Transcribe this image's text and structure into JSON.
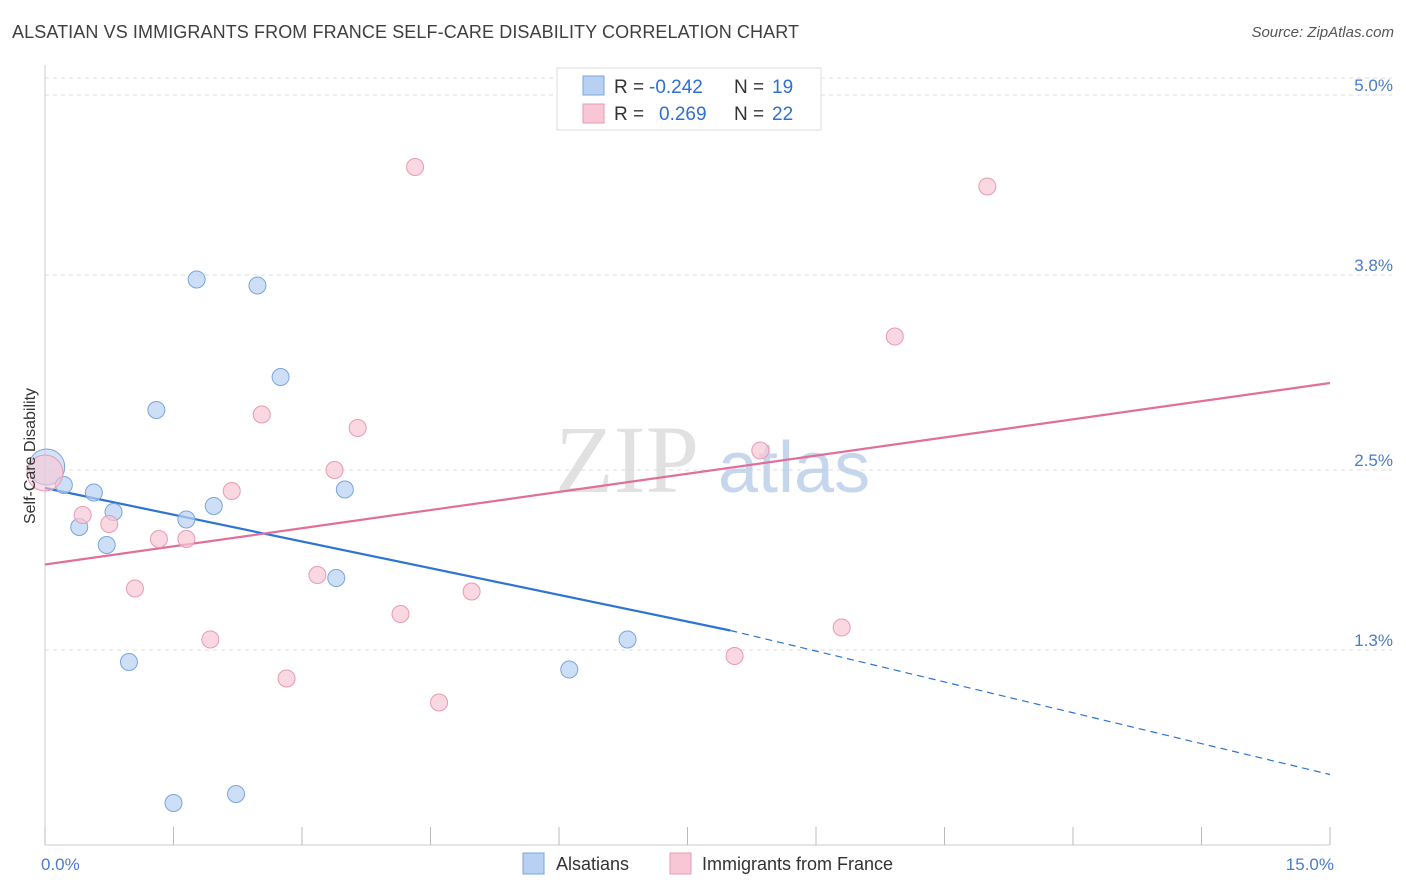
{
  "header": {
    "title": "ALSATIAN VS IMMIGRANTS FROM FRANCE SELF-CARE DISABILITY CORRELATION CHART",
    "source": "Source: ZipAtlas.com"
  },
  "colors": {
    "blue_fill": "#b8d1f2",
    "blue_stroke": "#7aa5dc",
    "blue_line": "#2e74d1",
    "pink_fill": "#f8c7d5",
    "pink_stroke": "#e99ab3",
    "pink_line": "#e0709a",
    "tick_text": "#4a7cc9",
    "grid": "#dddddd"
  },
  "watermark": {
    "zip": "ZIP",
    "atlas": "atlas"
  },
  "chart_data": {
    "type": "scatter",
    "title": "ALSATIAN VS IMMIGRANTS FROM FRANCE SELF-CARE DISABILITY CORRELATION CHART",
    "xlabel": "",
    "ylabel": "Self-Care Disability",
    "xlim": [
      0.0,
      15.0
    ],
    "ylim": [
      0.0,
      5.2
    ],
    "x_tick_labels": [
      {
        "value": 0.0,
        "label": "0.0%"
      },
      {
        "value": 15.0,
        "label": "15.0%"
      }
    ],
    "y_tick_labels": [
      {
        "value": 1.3,
        "label": "1.3%"
      },
      {
        "value": 2.5,
        "label": "2.5%"
      },
      {
        "value": 3.8,
        "label": "3.8%"
      },
      {
        "value": 5.0,
        "label": "5.0%"
      }
    ],
    "grid": true,
    "legend": {
      "placement": "top-center",
      "rows": [
        {
          "r_label": "R =",
          "r_value": "-0.242",
          "n_label": "N =",
          "n_value": "19",
          "series": "Alsatians"
        },
        {
          "r_label": "R =",
          "r_value": "0.269",
          "n_label": "N =",
          "n_value": "22",
          "series": "Immigrants from France"
        }
      ]
    },
    "series": [
      {
        "name": "Alsatians",
        "color": "blue",
        "points": [
          {
            "x": 0.02,
            "y": 2.52,
            "large": true
          },
          {
            "x": 0.22,
            "y": 2.4
          },
          {
            "x": 0.4,
            "y": 2.12
          },
          {
            "x": 0.57,
            "y": 2.35
          },
          {
            "x": 0.72,
            "y": 2.0
          },
          {
            "x": 0.8,
            "y": 2.22
          },
          {
            "x": 0.98,
            "y": 1.22
          },
          {
            "x": 1.3,
            "y": 2.9
          },
          {
            "x": 1.5,
            "y": 0.28
          },
          {
            "x": 1.65,
            "y": 2.17
          },
          {
            "x": 1.77,
            "y": 3.77
          },
          {
            "x": 1.97,
            "y": 2.26
          },
          {
            "x": 2.23,
            "y": 0.34
          },
          {
            "x": 2.48,
            "y": 3.73
          },
          {
            "x": 2.75,
            "y": 3.12
          },
          {
            "x": 3.4,
            "y": 1.78
          },
          {
            "x": 3.5,
            "y": 2.37
          },
          {
            "x": 6.12,
            "y": 1.17
          },
          {
            "x": 6.8,
            "y": 1.37
          }
        ],
        "trend": {
          "x1": 0.0,
          "y1": 2.38,
          "x2": 8.0,
          "y2": 1.43,
          "dashed_to_x": 15.0,
          "dashed_to_y": 0.47
        }
      },
      {
        "name": "Immigrants from France",
        "color": "pink",
        "points": [
          {
            "x": 0.0,
            "y": 2.48,
            "large": true
          },
          {
            "x": 0.44,
            "y": 2.2
          },
          {
            "x": 0.75,
            "y": 2.14
          },
          {
            "x": 1.05,
            "y": 1.71
          },
          {
            "x": 1.33,
            "y": 2.04
          },
          {
            "x": 1.65,
            "y": 2.04
          },
          {
            "x": 1.93,
            "y": 1.37
          },
          {
            "x": 2.18,
            "y": 2.36
          },
          {
            "x": 2.53,
            "y": 2.87
          },
          {
            "x": 2.82,
            "y": 1.11
          },
          {
            "x": 3.18,
            "y": 1.8
          },
          {
            "x": 3.38,
            "y": 2.5
          },
          {
            "x": 3.65,
            "y": 2.78
          },
          {
            "x": 4.15,
            "y": 1.54
          },
          {
            "x": 4.32,
            "y": 4.52
          },
          {
            "x": 4.6,
            "y": 0.95
          },
          {
            "x": 4.98,
            "y": 1.69
          },
          {
            "x": 8.05,
            "y": 1.26
          },
          {
            "x": 8.35,
            "y": 2.63
          },
          {
            "x": 9.3,
            "y": 1.45
          },
          {
            "x": 9.92,
            "y": 3.39
          },
          {
            "x": 11.0,
            "y": 4.39
          }
        ],
        "trend": {
          "x1": 0.0,
          "y1": 1.87,
          "x2": 15.0,
          "y2": 3.08
        }
      }
    ]
  },
  "bottom_legend": {
    "items": [
      {
        "label": "Alsatians"
      },
      {
        "label": "Immigrants from France"
      }
    ]
  }
}
